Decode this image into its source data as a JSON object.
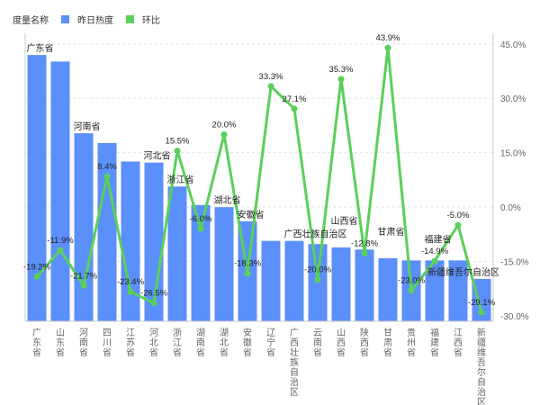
{
  "chart_data": {
    "type": "bar+line",
    "legend_title": "度量名称",
    "legend_placement": "top-left",
    "categories": [
      "广东省",
      "山东省",
      "河南省",
      "四川省",
      "江苏省",
      "河北省",
      "浙江省",
      "湖南省",
      "湖北省",
      "安徽省",
      "辽宁省",
      "广西壮族自治区",
      "云南省",
      "山西省",
      "陕西省",
      "甘肃省",
      "贵州省",
      "福建省",
      "江西省",
      "新疆维吾尔自治区"
    ],
    "series": [
      {
        "name": "昨日热度",
        "type": "bar",
        "axis": "left",
        "color": "#5b8ff9",
        "values": [
          245,
          239,
          173,
          164,
          147,
          146,
          124,
          107,
          105,
          92,
          74,
          74,
          71,
          68,
          66,
          58,
          56,
          56,
          56,
          39
        ],
        "labels_shown": [
          "广东省",
          "",
          "河南省",
          "",
          "",
          "河北省",
          "浙江省",
          "",
          "湖北省",
          "安徽省",
          "",
          "广西壮族自治区",
          "",
          "山西省",
          "",
          "甘肃省",
          "",
          "福建省",
          "",
          "新疆维吾尔自治区"
        ]
      },
      {
        "name": "环比",
        "type": "line",
        "axis": "right",
        "color": "#5ad05a",
        "values": [
          -19.2,
          -11.9,
          -21.7,
          8.4,
          -23.4,
          -26.5,
          15.5,
          -6.0,
          20.0,
          -18.3,
          33.3,
          27.1,
          -20.0,
          35.3,
          -12.8,
          43.9,
          -23.0,
          -14.9,
          -5.0,
          -29.1
        ],
        "labels": [
          "-19.2%",
          "-11.9%",
          "-21.7%",
          "8.4%",
          "-23.4%",
          "-26.5%",
          "15.5%",
          "-6.0%",
          "20.0%",
          "-18.3%",
          "33.3%",
          "27.1%",
          "-20.0%",
          "35.3%",
          "-12.8%",
          "43.9%",
          "-23.0%",
          "-14.9%",
          "-5.0%",
          "-29.1%"
        ]
      }
    ],
    "right_axis": {
      "ticks": [
        "45.0%",
        "30.0%",
        "15.0%",
        "0.0%",
        "-15.0%",
        "-30.0%"
      ],
      "tick_values": [
        45,
        30,
        15,
        0,
        -15,
        -30
      ],
      "ylim": [
        -31.5,
        50
      ]
    },
    "left_axis": {
      "ylim": [
        0,
        260
      ],
      "ticks_shown": false
    },
    "grid": true
  }
}
